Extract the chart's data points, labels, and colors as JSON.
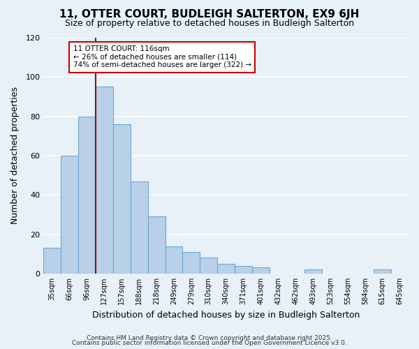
{
  "title": "11, OTTER COURT, BUDLEIGH SALTERTON, EX9 6JH",
  "subtitle": "Size of property relative to detached houses in Budleigh Salterton",
  "xlabel": "Distribution of detached houses by size in Budleigh Salterton",
  "ylabel": "Number of detached properties",
  "bar_labels": [
    "35sqm",
    "66sqm",
    "96sqm",
    "127sqm",
    "157sqm",
    "188sqm",
    "218sqm",
    "249sqm",
    "279sqm",
    "310sqm",
    "340sqm",
    "371sqm",
    "401sqm",
    "432sqm",
    "462sqm",
    "493sqm",
    "523sqm",
    "554sqm",
    "584sqm",
    "615sqm",
    "645sqm"
  ],
  "bar_values": [
    13,
    60,
    80,
    95,
    76,
    47,
    29,
    14,
    11,
    8,
    5,
    4,
    3,
    0,
    0,
    2,
    0,
    0,
    0,
    2,
    0
  ],
  "bar_color": "#b8d0e8",
  "bar_edgecolor": "#6aaad4",
  "background_color": "#e8f0f8",
  "grid_color": "#ffffff",
  "vline_x": 2.5,
  "vline_color": "#8b1010",
  "annotation_title": "11 OTTER COURT: 116sqm",
  "annotation_line1": "← 26% of detached houses are smaller (114)",
  "annotation_line2": "74% of semi-detached houses are larger (322) →",
  "annotation_box_color": "#ffffff",
  "annotation_box_edgecolor": "#cc0000",
  "ylim": [
    0,
    120
  ],
  "yticks": [
    0,
    20,
    40,
    60,
    80,
    100,
    120
  ],
  "footer1": "Contains HM Land Registry data © Crown copyright and database right 2025.",
  "footer2": "Contains public sector information licensed under the Open Government Licence v3.0.",
  "figsize": [
    6.0,
    5.0
  ],
  "dpi": 100
}
